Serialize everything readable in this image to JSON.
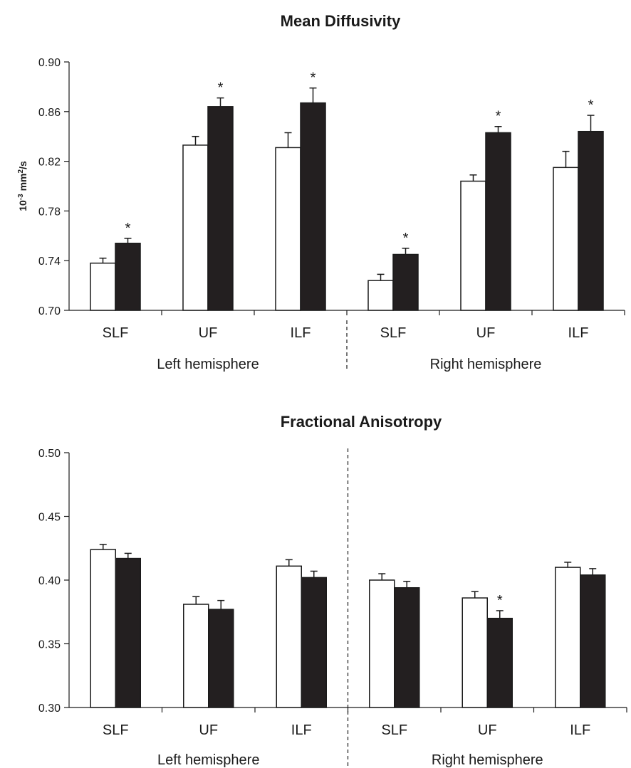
{
  "chart_data": [
    {
      "type": "bar",
      "title": "Mean Diffusivity",
      "ylabel": "10-3 mm2/s",
      "ylabel_parts": {
        "base": "10",
        "exp": "-3",
        "unit": " mm",
        "unit_exp": "2",
        "unit_tail": "/s"
      },
      "ylim": [
        0.7,
        0.9
      ],
      "yticks": [
        "0.70",
        "0.74",
        "0.78",
        "0.82",
        "0.86",
        "0.90"
      ],
      "grid": false,
      "categories": [
        "SLF",
        "UF",
        "ILF",
        "SLF",
        "UF",
        "ILF"
      ],
      "groups": [
        "Left hemisphere",
        "Right hemisphere"
      ],
      "series": [
        {
          "color": "#ffffff",
          "values": [
            0.738,
            0.833,
            0.831,
            0.724,
            0.804,
            0.815
          ],
          "errors": [
            0.004,
            0.007,
            0.012,
            0.005,
            0.005,
            0.013
          ]
        },
        {
          "color": "#231f20",
          "values": [
            0.754,
            0.864,
            0.867,
            0.745,
            0.843,
            0.844
          ],
          "errors": [
            0.004,
            0.007,
            0.012,
            0.005,
            0.005,
            0.013
          ]
        }
      ],
      "significance": [
        true,
        true,
        true,
        true,
        true,
        true
      ],
      "marker": "*"
    },
    {
      "type": "bar",
      "title": "Fractional Anisotropy",
      "ylabel": "",
      "ylim": [
        0.3,
        0.5
      ],
      "yticks": [
        "0.30",
        "0.35",
        "0.40",
        "0.45",
        "0.50"
      ],
      "grid": false,
      "categories": [
        "SLF",
        "UF",
        "ILF",
        "SLF",
        "UF",
        "ILF"
      ],
      "groups": [
        "Left hemisphere",
        "Right hemisphere"
      ],
      "series": [
        {
          "color": "#ffffff",
          "values": [
            0.424,
            0.381,
            0.411,
            0.4,
            0.386,
            0.41
          ],
          "errors": [
            0.004,
            0.006,
            0.005,
            0.005,
            0.005,
            0.004
          ]
        },
        {
          "color": "#231f20",
          "values": [
            0.417,
            0.377,
            0.402,
            0.394,
            0.37,
            0.404
          ],
          "errors": [
            0.004,
            0.007,
            0.005,
            0.005,
            0.006,
            0.005
          ]
        }
      ],
      "significance": [
        false,
        false,
        false,
        false,
        true,
        false
      ],
      "marker": "*"
    }
  ]
}
